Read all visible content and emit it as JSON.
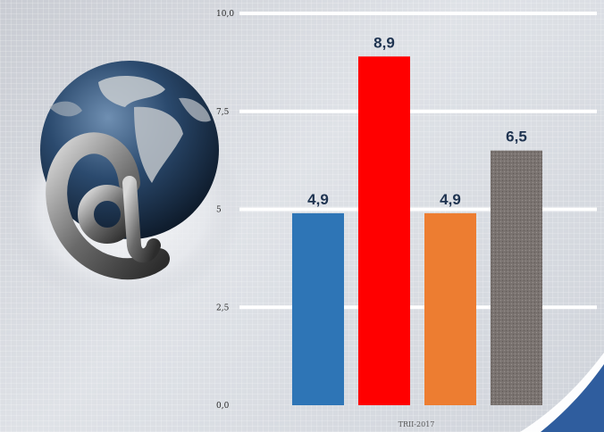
{
  "chart_data": {
    "type": "bar",
    "categories": [
      "TRII-2017"
    ],
    "series": [
      {
        "values": [
          4.9
        ],
        "color": "#2e75b6"
      },
      {
        "values": [
          8.9
        ],
        "color": "#ff0000"
      },
      {
        "values": [
          4.9
        ],
        "color": "#ed7d31"
      },
      {
        "values": [
          6.5
        ],
        "color": "#7f7f7f"
      }
    ],
    "y_ticks": [
      "10,0",
      "7,5",
      "5",
      "2,5",
      "0,0"
    ],
    "data_labels": [
      "4,9",
      "8,9",
      "4,9",
      "6,5"
    ],
    "x_tick_label": "TRII-2017",
    "ylim": [
      0,
      10
    ],
    "grid": true,
    "legend": "none",
    "title": "",
    "xlabel": "",
    "ylabel": ""
  },
  "decoration": {
    "illustration": "globe-with-at-sign-icon",
    "corner_accent_color": "#2f5d9e"
  }
}
